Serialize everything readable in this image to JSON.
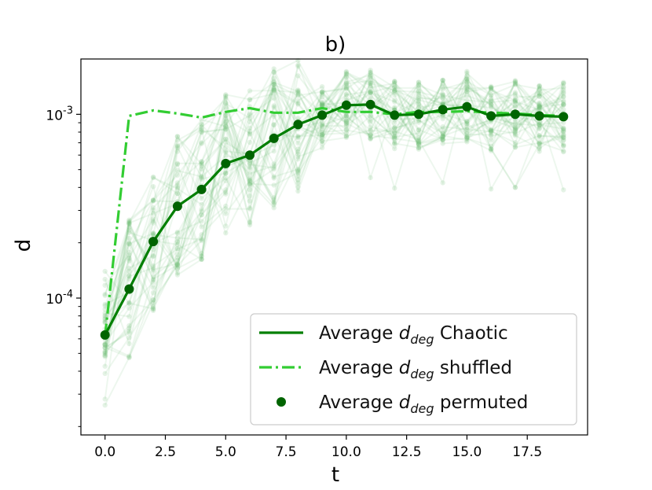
{
  "chart_data": {
    "type": "line",
    "title": "b)",
    "xlabel": "t",
    "ylabel": "d",
    "yscale": "log",
    "xlim": [
      -1,
      20
    ],
    "ylim": [
      1.8e-05,
      0.002
    ],
    "xticks": [
      0,
      2.5,
      5,
      7.5,
      10,
      12.5,
      15,
      17.5
    ],
    "xtick_labels": [
      "0.0",
      "2.5",
      "5.0",
      "7.5",
      "10.0",
      "12.5",
      "15.0",
      "17.5"
    ],
    "yticks": [
      {
        "value": 0.0001,
        "base": "10",
        "exp": "-4"
      },
      {
        "value": 0.001,
        "base": "10",
        "exp": "-3"
      }
    ],
    "x": [
      0,
      1,
      2,
      3,
      4,
      5,
      6,
      7,
      8,
      9,
      10,
      11,
      12,
      13,
      14,
      15,
      16,
      17,
      18,
      19
    ],
    "series": [
      {
        "name": "Average d_deg Chaotic",
        "style": "solid-with-markers",
        "color": "#007f00",
        "values": [
          6.3e-05,
          0.000112,
          0.000203,
          0.000316,
          0.00039,
          0.00054,
          0.0006,
          0.00074,
          0.00088,
          0.00099,
          0.00112,
          0.00113,
          0.00099,
          0.001,
          0.00106,
          0.0011,
          0.00098,
          0.001,
          0.00098,
          0.00097
        ]
      },
      {
        "name": "Average d_deg shuffled",
        "style": "dashdot",
        "color": "#32cd32",
        "values": [
          6.2e-05,
          0.00098,
          0.00105,
          0.00101,
          0.00096,
          0.00103,
          0.00108,
          0.00102,
          0.00102,
          0.00108,
          0.00103,
          0.00103,
          0.001,
          0.00103,
          0.00103,
          0.00104,
          0.00102,
          0.00101,
          0.00099,
          0.00098
        ]
      }
    ],
    "background_runs_color": "#6fbf73",
    "legend": {
      "position": "lower-right",
      "entries": [
        {
          "prefix": "Average ",
          "sym": "d",
          "sub": "deg",
          "suffix": " Chaotic",
          "kind": "line"
        },
        {
          "prefix": "Average ",
          "sym": "d",
          "sub": "deg",
          "suffix": " shuffled",
          "kind": "dashdot"
        },
        {
          "prefix": "Average ",
          "sym": "d",
          "sub": "deg",
          "suffix": " permuted",
          "kind": "marker"
        }
      ]
    }
  }
}
